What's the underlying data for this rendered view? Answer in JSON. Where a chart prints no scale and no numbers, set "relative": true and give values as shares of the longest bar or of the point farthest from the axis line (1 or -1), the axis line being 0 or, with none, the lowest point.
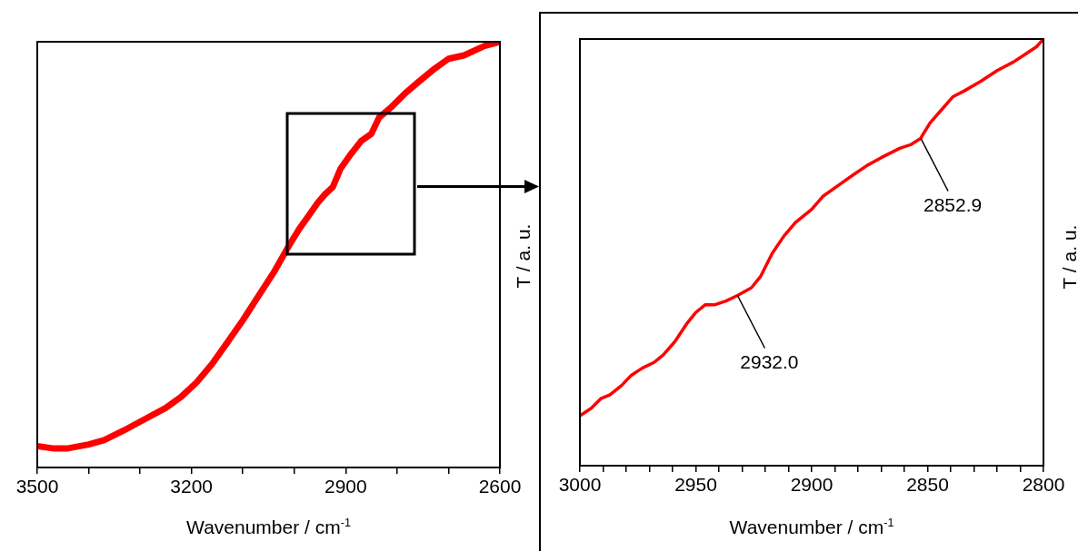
{
  "chart_data": [
    {
      "type": "line",
      "xlabel": "Wavenumber / cm$^{-1}$",
      "ylabel": "T / a. u.",
      "relative": true,
      "x": [
        3500,
        3470,
        3440,
        3400,
        3370,
        3330,
        3290,
        3250,
        3220,
        3190,
        3160,
        3130,
        3100,
        3070,
        3040,
        3010,
        2990,
        2970,
        2955,
        2940,
        2925,
        2910,
        2890,
        2870,
        2850,
        2835,
        2810,
        2785,
        2760,
        2730,
        2700,
        2670,
        2630,
        2600
      ],
      "series": [
        {
          "color": "#ff0000",
          "values": [
            0.05,
            0.045,
            0.045,
            0.054,
            0.064,
            0.088,
            0.114,
            0.14,
            0.166,
            0.2,
            0.243,
            0.294,
            0.346,
            0.402,
            0.458,
            0.522,
            0.561,
            0.595,
            0.621,
            0.642,
            0.659,
            0.702,
            0.736,
            0.767,
            0.784,
            0.822,
            0.848,
            0.878,
            0.904,
            0.934,
            0.96,
            0.968,
            0.99,
            1
          ]
        }
      ],
      "xlim": [
        3500,
        2600
      ],
      "xticks": [
        3500,
        {
          "value": 3400,
          "label": null
        },
        {
          "value": 3300,
          "label": null
        },
        3200,
        {
          "value": 3100,
          "label": null
        },
        {
          "value": 3000,
          "label": null
        },
        2900,
        {
          "value": 2800,
          "label": null
        },
        {
          "value": 2700,
          "label": null
        },
        2600
      ],
      "legend": false,
      "marker": "none",
      "line_style": "solid"
    },
    {
      "type": "line",
      "xlabel": "Wavenumber / cm$^{-1}$",
      "ylabel": "T / a. u.",
      "relative": true,
      "x": [
        3000,
        2995,
        2991,
        2987,
        2982,
        2978,
        2973,
        2968,
        2964,
        2959,
        2954,
        2950,
        2946,
        2942,
        2937,
        2932,
        2926,
        2922,
        2917,
        2912,
        2907,
        2900,
        2895,
        2889,
        2882,
        2876,
        2870,
        2862,
        2857,
        2853,
        2849,
        2844,
        2839,
        2834,
        2827,
        2820,
        2813,
        2808,
        2803,
        2800
      ],
      "series": [
        {
          "color": "#ff0000",
          "values": [
            0.117,
            0.135,
            0.157,
            0.166,
            0.188,
            0.211,
            0.229,
            0.242,
            0.26,
            0.291,
            0.332,
            0.359,
            0.377,
            0.377,
            0.386,
            0.399,
            0.417,
            0.444,
            0.498,
            0.538,
            0.57,
            0.601,
            0.632,
            0.655,
            0.682,
            0.704,
            0.722,
            0.744,
            0.753,
            0.767,
            0.803,
            0.834,
            0.865,
            0.879,
            0.901,
            0.926,
            0.946,
            0.964,
            0.982,
            1
          ]
        }
      ],
      "xlim": [
        3000,
        2800
      ],
      "xticks": [
        3000,
        {
          "value": 2990,
          "label": null
        },
        {
          "value": 2980,
          "label": null
        },
        {
          "value": 2970,
          "label": null
        },
        {
          "value": 2960,
          "label": null
        },
        2950,
        {
          "value": 2940,
          "label": null
        },
        {
          "value": 2930,
          "label": null
        },
        {
          "value": 2920,
          "label": null
        },
        {
          "value": 2910,
          "label": null
        },
        2900,
        {
          "value": 2890,
          "label": null
        },
        {
          "value": 2880,
          "label": null
        },
        {
          "value": 2870,
          "label": null
        },
        {
          "value": 2860,
          "label": null
        },
        2850,
        {
          "value": 2840,
          "label": null
        },
        {
          "value": 2830,
          "label": null
        },
        {
          "value": 2820,
          "label": null
        },
        {
          "value": 2810,
          "label": null
        },
        2800
      ],
      "annotations": [
        {
          "text": "2932.0",
          "x": 2932,
          "y": 0.399
        },
        {
          "text": "2852.9",
          "x": 2852.9,
          "y": 0.767
        }
      ],
      "legend": false,
      "marker": "none",
      "line_style": "solid"
    }
  ]
}
